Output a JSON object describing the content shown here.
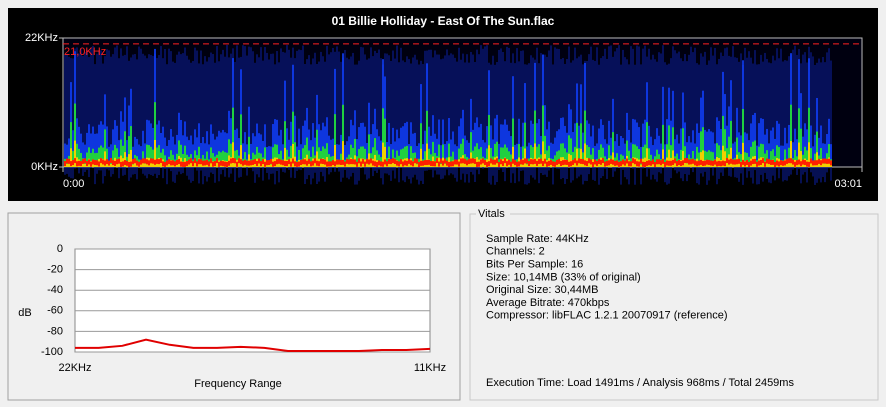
{
  "window_title": "01 Billie Holliday - East Of The Sun.flac",
  "spectrogram": {
    "ylim": [
      0,
      22
    ],
    "yticks": [
      {
        "value": 0,
        "label": "0KHz"
      },
      {
        "value": 22,
        "label": "22KHz"
      }
    ],
    "xlim": [
      0,
      181
    ],
    "xticks": [
      {
        "value": 0,
        "label": "0:00"
      },
      {
        "value": 181,
        "label": "03:01"
      }
    ],
    "cutoff": {
      "value": 21,
      "label": "21,0KHz"
    }
  },
  "chart_data": {
    "type": "line",
    "ylabel": "dB",
    "xlabel": "Frequency Range",
    "categories": [
      "22KHz",
      null,
      null,
      null,
      null,
      null,
      null,
      null,
      null,
      null,
      null,
      null,
      null,
      null,
      null,
      "11KHz"
    ],
    "values": [
      -96,
      -96,
      -94,
      -88,
      -93,
      -96,
      -96,
      -95,
      -96,
      -99,
      -99,
      -99,
      -99,
      -98,
      -98,
      -97
    ],
    "color": "#e00000",
    "ylim": [
      -100,
      0
    ],
    "yticks": [
      0,
      -20,
      -40,
      -60,
      -80,
      -100
    ],
    "grid": true
  },
  "vitals": {
    "title": "Vitals",
    "lines": [
      "Sample Rate: 44KHz",
      "Channels: 2",
      "Bits Per Sample: 16",
      "Size: 10,14MB (33% of original)",
      "Original Size: 30,44MB",
      "Average Bitrate: 470kbps",
      "Compressor: libFLAC 1.2.1 20070917 (reference)"
    ],
    "execution": "Execution Time: Load 1491ms / Analysis 968ms / Total 2459ms"
  }
}
